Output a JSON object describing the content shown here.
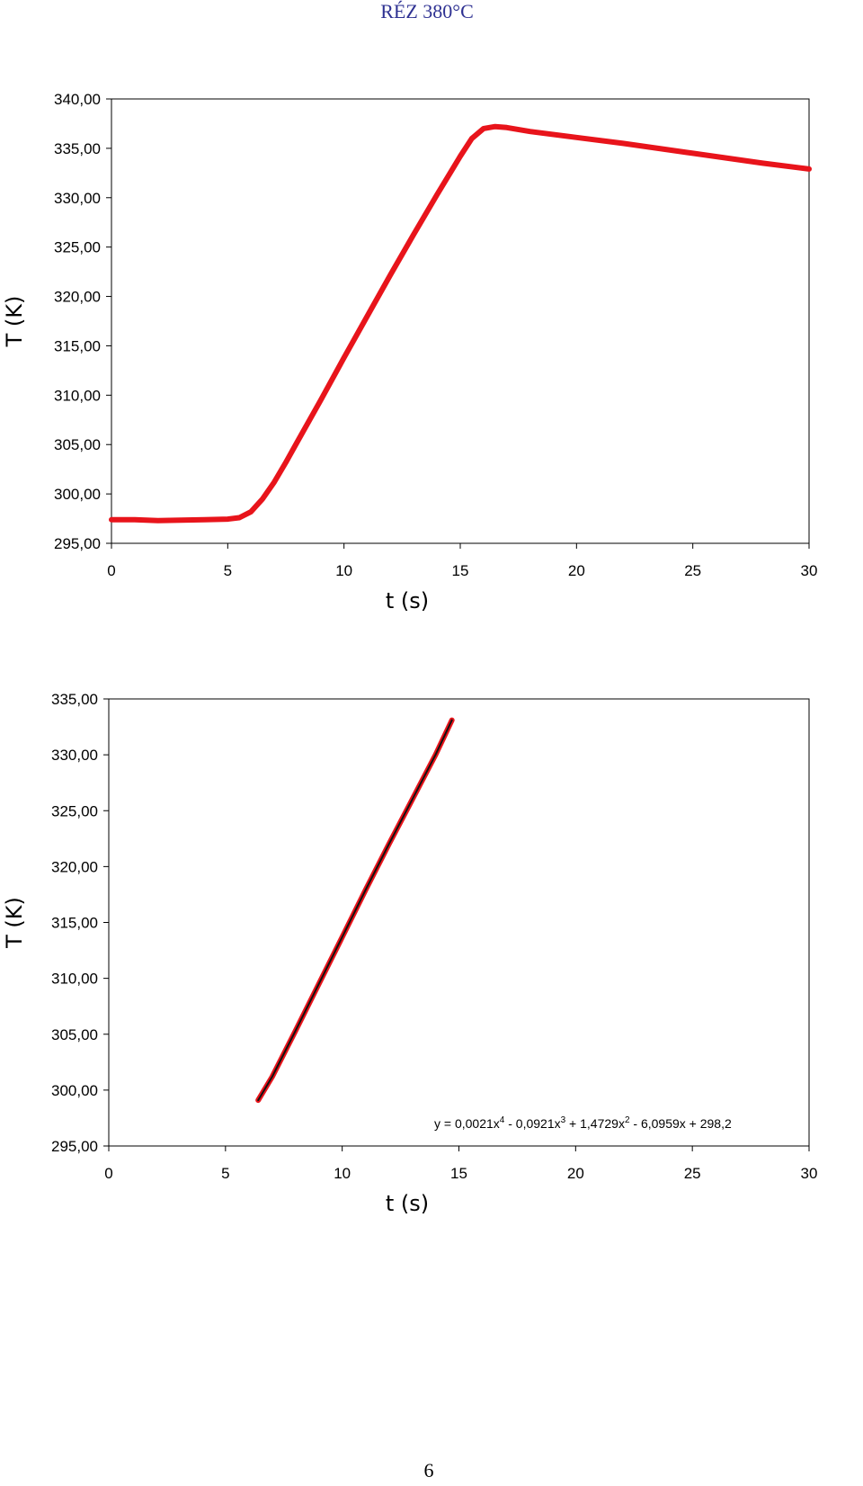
{
  "header": {
    "title": "RÉZ 380°C"
  },
  "chart_data": [
    {
      "type": "line",
      "xlabel": "t (s)",
      "ylabel": "T (K)",
      "xlim": [
        0,
        30
      ],
      "xticks": [
        0,
        5,
        10,
        15,
        20,
        25,
        30
      ],
      "ylim": [
        295,
        340
      ],
      "yticks": [
        {
          "value": 295,
          "label": "295,00"
        },
        {
          "value": 300,
          "label": "300,00"
        },
        {
          "value": 305,
          "label": "305,00"
        },
        {
          "value": 310,
          "label": "310,00"
        },
        {
          "value": 315,
          "label": "315,00"
        },
        {
          "value": 320,
          "label": "320,00"
        },
        {
          "value": 325,
          "label": "325,00"
        },
        {
          "value": 330,
          "label": "330,00"
        },
        {
          "value": 335,
          "label": "335,00"
        },
        {
          "value": 340,
          "label": "340,00"
        }
      ],
      "series": [
        {
          "color": "#e8141b",
          "width": 6,
          "x": [
            0,
            1,
            2,
            3,
            4,
            5,
            5.5,
            6,
            6.5,
            7,
            7.5,
            8,
            9,
            10,
            11,
            12,
            13,
            14,
            15,
            15.5,
            16,
            16.5,
            17,
            18,
            20,
            22,
            25,
            28,
            30
          ],
          "values": [
            297.4,
            297.4,
            297.3,
            297.35,
            297.4,
            297.45,
            297.6,
            298.2,
            299.5,
            301.2,
            303.2,
            305.3,
            309.5,
            313.8,
            318.0,
            322.2,
            326.3,
            330.3,
            334.2,
            336.0,
            337.0,
            337.2,
            337.1,
            336.7,
            336.1,
            335.5,
            334.5,
            333.5,
            332.9
          ]
        }
      ]
    },
    {
      "type": "line",
      "xlabel": "t (s)",
      "ylabel": "T (K)",
      "xlim": [
        0,
        30
      ],
      "xticks": [
        0,
        5,
        10,
        15,
        20,
        25,
        30
      ],
      "ylim": [
        295,
        335
      ],
      "yticks": [
        {
          "value": 295,
          "label": "295,00"
        },
        {
          "value": 300,
          "label": "300,00"
        },
        {
          "value": 305,
          "label": "305,00"
        },
        {
          "value": 310,
          "label": "310,00"
        },
        {
          "value": 315,
          "label": "315,00"
        },
        {
          "value": 320,
          "label": "320,00"
        },
        {
          "value": 325,
          "label": "325,00"
        },
        {
          "value": 330,
          "label": "330,00"
        },
        {
          "value": 335,
          "label": "335,00"
        }
      ],
      "series": [
        {
          "color": "#e8141b",
          "width": 6,
          "x": [
            6.4,
            7,
            8,
            9,
            10,
            11,
            12,
            13,
            14,
            14.7
          ],
          "values": [
            299.1,
            301.2,
            305.3,
            309.5,
            313.7,
            317.9,
            322.0,
            326.0,
            330.0,
            333.1
          ]
        },
        {
          "color": "#111111",
          "width": 2,
          "x": [
            6.4,
            7,
            8,
            9,
            10,
            11,
            12,
            13,
            14,
            14.7
          ],
          "values": [
            299.1,
            301.2,
            305.3,
            309.5,
            313.7,
            317.9,
            322.0,
            326.0,
            330.0,
            333.1
          ]
        }
      ],
      "annotation": [
        "y = 0,0021x",
        "4",
        " - 0,0921x",
        "3",
        " + 1,4729x",
        "2",
        " - 6,0959x + 298,2"
      ]
    }
  ],
  "page_number": "6"
}
